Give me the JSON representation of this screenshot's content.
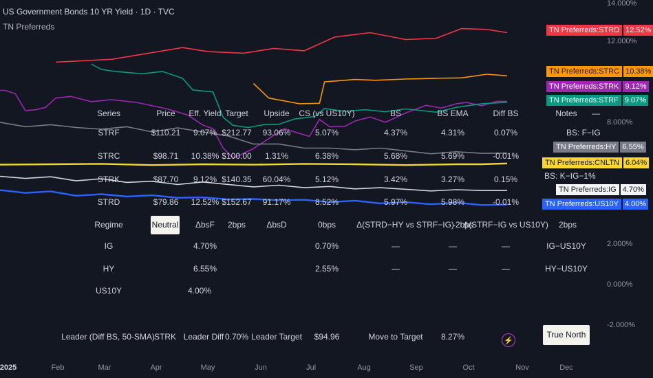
{
  "header": {
    "title": "US Government Bonds 10 YR Yield · 1D · TVC",
    "subtitle": "TN Preferreds"
  },
  "chart_data": {
    "type": "line",
    "y_axis": {
      "min": -2,
      "max": 14,
      "ticks": [
        "14.000%",
        "12.000%",
        "8.000%",
        "2.000%",
        "0.000%",
        "-2.000%"
      ]
    },
    "x_axis": {
      "ticks": [
        "2025",
        "Feb",
        "Mar",
        "Apr",
        "May",
        "Jun",
        "Jul",
        "Aug",
        "Sep",
        "Oct",
        "Nov",
        "Dec"
      ]
    },
    "series": [
      {
        "name": "TN Preferreds:STRD",
        "color": "#f23645",
        "label": "12.52%",
        "x": [
          11,
          22,
          36,
          41,
          48,
          54,
          60,
          66,
          73,
          80,
          86,
          91,
          96,
          100
        ],
        "y": [
          11.06,
          11.2,
          11.78,
          11.58,
          11.5,
          11.74,
          11.62,
          12.3,
          12.52,
          12.18,
          12.24,
          12.72,
          12.68,
          12.52
        ]
      },
      {
        "name": "TN Preferreds:STRC",
        "color": "#ff9800",
        "label": "10.38%",
        "x": [
          50,
          53,
          59,
          63,
          64,
          70,
          74,
          80,
          86,
          91,
          96,
          100
        ],
        "y": [
          10.0,
          9.28,
          9.0,
          9.02,
          10.08,
          10.2,
          10.16,
          10.22,
          10.26,
          10.28,
          10.46,
          10.38
        ]
      },
      {
        "name": "TN Preferreds:STRK",
        "color": "#9c27b0",
        "label": "9.12%",
        "x": [
          0,
          1,
          3,
          5,
          7,
          9,
          11,
          14,
          18,
          22,
          27,
          33,
          37,
          40,
          42,
          44,
          46,
          50,
          56,
          61,
          63,
          65,
          68,
          70,
          73,
          76,
          80,
          84,
          87,
          90,
          92,
          95,
          98,
          100
        ],
        "y": [
          9.66,
          9.66,
          9.5,
          8.66,
          8.7,
          8.82,
          9.28,
          9.36,
          9.1,
          9.2,
          9.06,
          8.74,
          8.44,
          7.94,
          7.76,
          6.8,
          6.3,
          6.78,
          7.76,
          7.38,
          8.22,
          7.86,
          7.88,
          8.14,
          8.34,
          8.08,
          8.54,
          8.92,
          8.78,
          9.0,
          9.06,
          8.9,
          9.12,
          9.12
        ]
      },
      {
        "name": "TN Preferreds:STRF",
        "color": "#089981",
        "label": "9.07%",
        "x": [
          18,
          20,
          22,
          28,
          32,
          36,
          38,
          42,
          44,
          46,
          49,
          52,
          55,
          58,
          62,
          64,
          68,
          72,
          76,
          80,
          86,
          90,
          95,
          100
        ],
        "y": [
          10.96,
          10.7,
          10.62,
          10.48,
          10.6,
          10.26,
          9.68,
          9.58,
          8.32,
          7.92,
          7.82,
          7.96,
          7.98,
          8.24,
          8.36,
          8.76,
          8.62,
          8.7,
          8.6,
          8.74,
          8.58,
          8.82,
          9.0,
          9.07
        ]
      },
      {
        "name": "TN Preferreds:HY",
        "color": "#787b86",
        "label": "6.55%",
        "x": [
          0,
          5,
          10,
          15,
          20,
          25,
          30,
          35,
          40,
          45,
          50,
          55,
          60,
          65,
          70,
          75,
          80,
          85,
          90,
          95,
          100
        ],
        "y": [
          8.08,
          7.86,
          7.96,
          7.82,
          7.74,
          7.86,
          7.6,
          7.8,
          7.6,
          7.4,
          7.0,
          7.0,
          6.8,
          6.8,
          6.72,
          6.8,
          6.66,
          6.52,
          6.62,
          6.54,
          6.55
        ]
      },
      {
        "name": "TN Preferreds:CNLTN",
        "color": "#f7d633",
        "label": "6.04%",
        "x": [
          0,
          10,
          20,
          30,
          40,
          50,
          60,
          70,
          80,
          90,
          95,
          100
        ],
        "y": [
          5.98,
          6.0,
          6.02,
          5.96,
          6.0,
          5.98,
          6.02,
          6.0,
          5.96,
          6.0,
          6.0,
          6.04
        ]
      },
      {
        "name": "TN Preferreds:IG",
        "color": "#d1d4dc",
        "label": "4.70%",
        "x": [
          0,
          5,
          10,
          15,
          20,
          25,
          30,
          35,
          40,
          45,
          50,
          55,
          60,
          65,
          70,
          75,
          80,
          85,
          90,
          95,
          100
        ],
        "y": [
          5.4,
          5.3,
          5.38,
          5.18,
          5.28,
          5.1,
          5.16,
          5.0,
          5.12,
          5.0,
          4.88,
          4.96,
          4.84,
          4.9,
          4.78,
          4.84,
          4.76,
          4.68,
          4.74,
          4.7,
          4.7
        ]
      },
      {
        "name": "TN Preferreds:US10Y",
        "color": "#2962ff",
        "label": "4.00%",
        "x": [
          0,
          5,
          10,
          15,
          20,
          25,
          30,
          35,
          40,
          45,
          50,
          55,
          60,
          65,
          70,
          75,
          80,
          85,
          90,
          95,
          100
        ],
        "y": [
          4.72,
          4.58,
          4.66,
          4.44,
          4.52,
          4.4,
          4.46,
          4.34,
          4.36,
          4.26,
          4.28,
          4.22,
          4.24,
          4.12,
          4.2,
          4.06,
          4.12,
          4.02,
          4.1,
          3.98,
          4.0
        ]
      }
    ]
  },
  "labels_on_chart": [
    {
      "text": "BS: F−IG"
    },
    {
      "text": "BS: K−IG−1%"
    }
  ],
  "table": {
    "header": [
      "Series",
      "Price",
      "Eff. Yield",
      "Target",
      "Upside",
      "CS (vs US10Y)",
      "BS",
      "BS EMA",
      "Diff BS",
      "Notes",
      "—"
    ],
    "rows": [
      [
        "STRF",
        "$110.21",
        "9.07%",
        "$212.77",
        "93.06%",
        "5.07%",
        "4.37%",
        "4.31%",
        "0.07%"
      ],
      [
        "STRC",
        "$98.71",
        "10.38%",
        "$100.00",
        "1.31%",
        "6.38%",
        "5.68%",
        "5.69%",
        "-0.01%"
      ],
      [
        "STRK",
        "$87.70",
        "9.12%",
        "$140.35",
        "60.04%",
        "5.12%",
        "3.42%",
        "3.27%",
        "0.15%"
      ],
      [
        "STRD",
        "$79.86",
        "12.52%",
        "$152.67",
        "91.17%",
        "8.52%",
        "5.97%",
        "5.98%",
        "-0.01%"
      ]
    ],
    "regime": [
      "Regime",
      "Neutral",
      "ΔbsF",
      "2bps",
      "ΔbsD",
      "0bps",
      "Δ(STRD−HY vs STRF−IG)",
      "-2bps",
      "Δ(STRF−IG vs US10Y)",
      "2bps"
    ],
    "ig": [
      "IG",
      "4.70%",
      "0.70%",
      "—",
      "—",
      "—",
      "IG−US10Y"
    ],
    "hy": [
      "HY",
      "6.55%",
      "2.55%",
      "—",
      "—",
      "—",
      "HY−US10Y"
    ],
    "us10y": [
      "US10Y",
      "4.00%"
    ],
    "footer": [
      "Leader (Diff BS, 50-SMA)",
      "STRK",
      "Leader Diff",
      "0.70%",
      "Leader Target",
      "$94.96",
      "Move to Target",
      "8.27%"
    ],
    "button": "True North",
    "bolt_icon": "lightning-icon"
  }
}
